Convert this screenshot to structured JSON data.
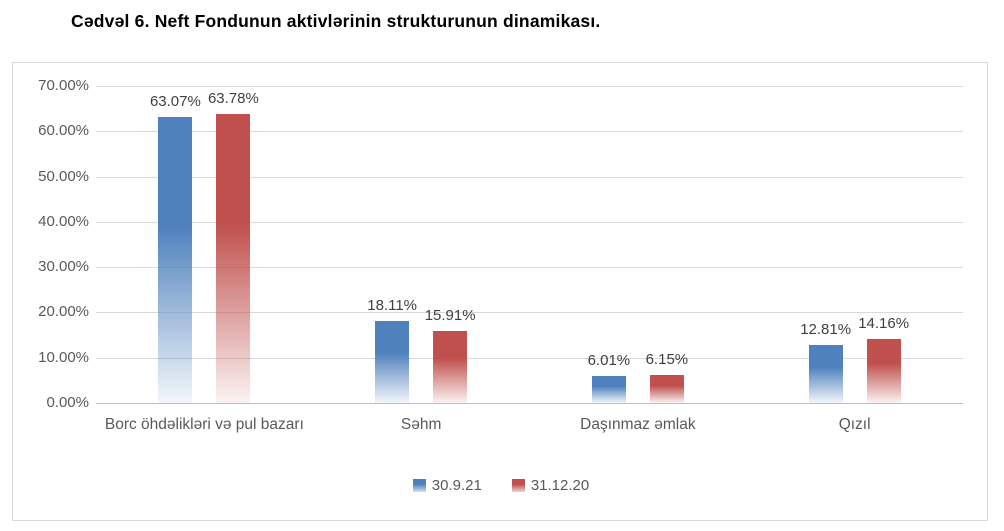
{
  "title": "Cədvəl 6. Neft Fondunun aktivlərinin strukturunun dinamikası.",
  "colors": {
    "series_blue": "#4F81BD",
    "series_red": "#C0504D",
    "gridline": "#D9D9D9",
    "axis_line": "#BFBFBF",
    "chart_border": "#D9D9D9",
    "tick_text": "#595959",
    "value_label_text": "#404040",
    "title_text": "#000000"
  },
  "chart_data": {
    "type": "bar",
    "categories": [
      "Borc öhdəlikləri və pul bazarı",
      "Səhm",
      "Daşınmaz əmlak",
      "Qızıl"
    ],
    "series": [
      {
        "name": "30.9.21",
        "color": "#4F81BD",
        "values": [
          63.07,
          18.11,
          6.01,
          12.81
        ],
        "labels": [
          "63.07%",
          "18.11%",
          "6.01%",
          "12.81%"
        ]
      },
      {
        "name": "31.12.20",
        "color": "#C0504D",
        "values": [
          63.78,
          15.91,
          6.15,
          14.16
        ],
        "labels": [
          "63.78%",
          "15.91%",
          "6.15%",
          "14.16%"
        ]
      }
    ],
    "title": "Cədvəl 6. Neft Fondunun aktivlərinin strukturunun dinamikası.",
    "xlabel": "",
    "ylabel": "",
    "ylim": [
      0,
      70
    ],
    "yticks": [
      "0.00%",
      "10.00%",
      "20.00%",
      "30.00%",
      "40.00%",
      "50.00%",
      "60.00%",
      "70.00%"
    ],
    "grid": true,
    "legend_position": "bottom"
  }
}
